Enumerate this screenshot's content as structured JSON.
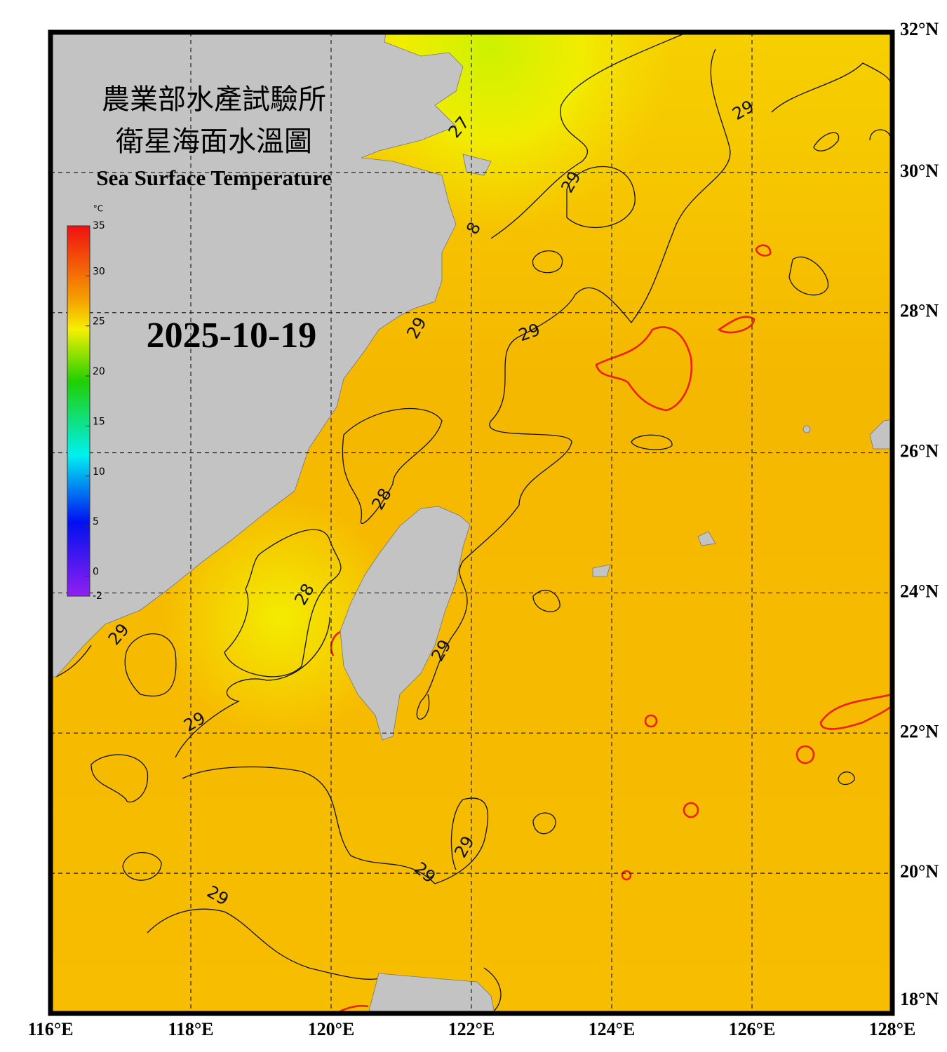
{
  "title": {
    "zh_line1": "農業部水產試驗所",
    "zh_line2": "衛星海面水溫圖",
    "en": "Sea Surface Temperature"
  },
  "date": "2025-10-19",
  "colorbar": {
    "unit": "°C",
    "ticks": [
      35,
      30,
      25,
      20,
      15,
      10,
      5,
      0,
      -2
    ]
  },
  "lon_ticks": [
    {
      "value": 116,
      "label": "116°E"
    },
    {
      "value": 118,
      "label": "118°E"
    },
    {
      "value": 120,
      "label": "120°E"
    },
    {
      "value": 122,
      "label": "122°E"
    },
    {
      "value": 124,
      "label": "124°E"
    },
    {
      "value": 126,
      "label": "126°E"
    },
    {
      "value": 128,
      "label": "128°E"
    }
  ],
  "lat_ticks": [
    {
      "value": 32,
      "label": "32°N"
    },
    {
      "value": 30,
      "label": "30°N"
    },
    {
      "value": 28,
      "label": "28°N"
    },
    {
      "value": 26,
      "label": "26°N"
    },
    {
      "value": 24,
      "label": "24°N"
    },
    {
      "value": 22,
      "label": "22°N"
    },
    {
      "value": 20,
      "label": "20°N"
    },
    {
      "value": 18,
      "label": "18°N"
    }
  ],
  "contour_labels": [
    "27",
    "29",
    "29",
    "8",
    "29",
    "29",
    "28",
    "28",
    "29",
    "29",
    "29",
    "29",
    "29",
    "29"
  ]
}
